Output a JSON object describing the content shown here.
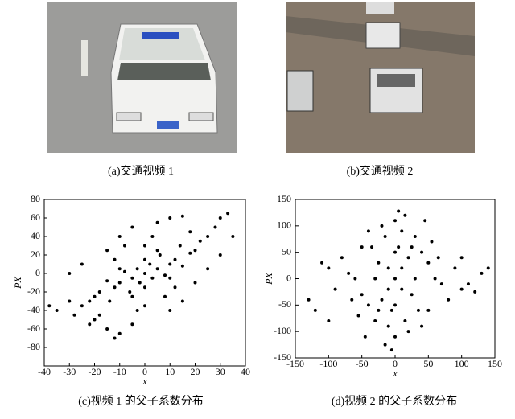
{
  "figures": {
    "a": {
      "caption": "(a)交通视频 1"
    },
    "b": {
      "caption": "(b)交通视频 2"
    }
  },
  "chart_data": [
    {
      "type": "scatter",
      "caption": "(c)视频 1 的父子系数分布",
      "xlabel": "x",
      "ylabel": "PX",
      "color": "#000000",
      "xlim": [
        -40,
        40
      ],
      "ylim": [
        -100,
        80
      ],
      "xticks": [
        -40,
        -30,
        -20,
        -10,
        0,
        10,
        20,
        30,
        40
      ],
      "yticks": [
        -80,
        -60,
        -40,
        -20,
        0,
        20,
        40,
        60,
        80
      ],
      "x": [
        0,
        -5,
        5,
        -10,
        10,
        -3,
        3,
        -8,
        8,
        -12,
        12,
        -15,
        15,
        0,
        0,
        -6,
        6,
        -18,
        18,
        2,
        -2,
        10,
        -10,
        5,
        -5,
        -20,
        20,
        14,
        -14,
        22,
        -22,
        25,
        -25,
        28,
        30,
        33,
        -30,
        -35,
        -38,
        -28,
        -20,
        -15,
        -12,
        -5,
        10,
        15,
        20,
        25,
        30,
        35,
        -10,
        -5,
        5,
        10,
        15,
        -25,
        -30,
        -15,
        0,
        0,
        8,
        -8,
        18,
        -18,
        12,
        -12,
        3,
        -3,
        -22,
        -10
      ],
      "y": [
        0,
        -5,
        5,
        -10,
        10,
        5,
        -5,
        2,
        -2,
        -15,
        15,
        -8,
        8,
        15,
        -15,
        -20,
        20,
        -20,
        22,
        10,
        -10,
        -5,
        5,
        25,
        -25,
        -25,
        25,
        30,
        -30,
        35,
        -30,
        40,
        -35,
        50,
        60,
        65,
        -30,
        -40,
        -35,
        -45,
        -50,
        -60,
        -70,
        -55,
        -40,
        -30,
        -10,
        5,
        20,
        40,
        40,
        50,
        55,
        60,
        62,
        10,
        0,
        25,
        30,
        -35,
        -25,
        30,
        45,
        -45,
        -15,
        15,
        40,
        -40,
        -55,
        -65
      ]
    },
    {
      "type": "scatter",
      "caption": "(d)视频 2 的父子系数分布",
      "xlabel": "x",
      "ylabel": "PX",
      "color": "#000000",
      "xlim": [
        -150,
        150
      ],
      "ylim": [
        -150,
        150
      ],
      "xticks": [
        -150,
        -100,
        -50,
        0,
        50,
        100,
        150
      ],
      "yticks": [
        -150,
        -100,
        -50,
        0,
        50,
        100,
        150
      ],
      "x": [
        0,
        10,
        -10,
        20,
        -20,
        5,
        -5,
        10,
        -10,
        15,
        -15,
        30,
        -30,
        40,
        -40,
        50,
        -50,
        60,
        -60,
        70,
        -70,
        100,
        -100,
        110,
        -110,
        90,
        -90,
        130,
        -130,
        80,
        -80,
        25,
        -25,
        35,
        -35,
        20,
        -20,
        0,
        0,
        45,
        -45,
        55,
        -55,
        30,
        -30,
        0,
        0,
        15,
        -15,
        40,
        -40,
        65,
        -65,
        120,
        -120,
        140,
        -100,
        100,
        5,
        -5,
        50,
        -50,
        25,
        -25,
        10,
        -10
      ],
      "y": [
        0,
        20,
        -20,
        40,
        -40,
        60,
        -60,
        90,
        -90,
        120,
        -125,
        80,
        -80,
        50,
        -50,
        30,
        -30,
        0,
        0,
        -10,
        10,
        -20,
        20,
        -10,
        30,
        20,
        -20,
        10,
        -40,
        -40,
        40,
        -30,
        30,
        -60,
        60,
        -100,
        100,
        110,
        -110,
        110,
        -110,
        70,
        -70,
        0,
        0,
        50,
        -50,
        -80,
        80,
        -90,
        90,
        40,
        -40,
        -25,
        -60,
        20,
        -80,
        40,
        128,
        -135,
        -60,
        60,
        60,
        -60,
        -20,
        20
      ]
    }
  ]
}
